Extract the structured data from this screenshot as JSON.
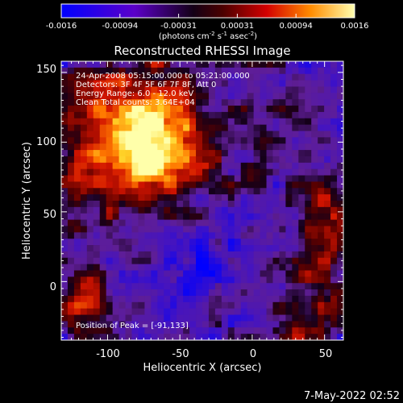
{
  "colorbar": {
    "tick_labels": [
      "-0.0016",
      "-0.00094",
      "-0.00031",
      "0.00031",
      "0.00094",
      "0.0016"
    ],
    "unit_prefix": "(photons cm",
    "unit_exp1": "-2",
    "unit_mid": " s",
    "unit_exp2": "-1",
    "unit_mid2": " asec",
    "unit_exp3": "-2",
    "unit_suffix": ")"
  },
  "plot": {
    "title": "Reconstructed RHESSI Image",
    "xlabel": "Heliocentric X (arcsec)",
    "ylabel": "Heliocentric Y (arcsec)",
    "x_ticks": [
      "-100",
      "-50",
      "0",
      "50"
    ],
    "y_ticks": [
      "0",
      "50",
      "100",
      "150"
    ],
    "xlim": [
      -132,
      63
    ],
    "ylim": [
      -42,
      158
    ]
  },
  "annotations": {
    "time_range": "24-Apr-2008 05:15:00.000 to 05:21:00.000",
    "detectors": "Detectors: 3F 4F 5F 6F 7F 8F, Att 0",
    "energy": "Energy Range: 6.0 - 12.0 keV",
    "method": "Clean   Total counts: 3.64E+04",
    "peak": "Position of Peak = [-91,133]"
  },
  "footer": {
    "timestamp": "7-May-2022 02:52"
  },
  "colors": {
    "background": "#000000",
    "foreground": "#ffffff",
    "colormap": [
      "#0000ff",
      "#6a00b8",
      "#1a001f",
      "#8c0000",
      "#ff4a00",
      "#ffff99"
    ]
  }
}
